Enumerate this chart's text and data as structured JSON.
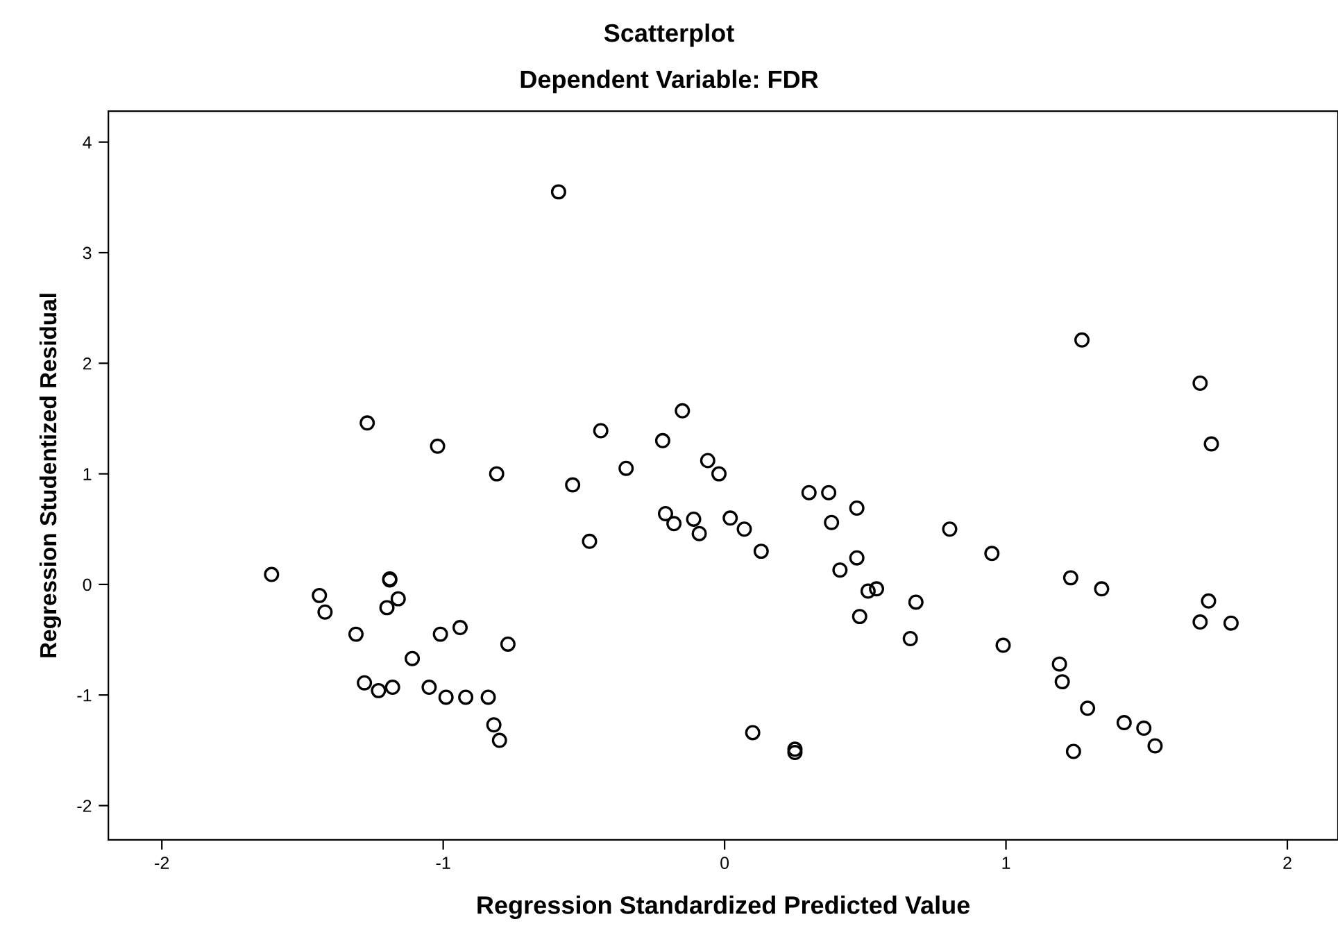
{
  "chart_data": {
    "type": "scatter",
    "title": "Scatterplot",
    "subtitle": "Dependent Variable: FDR",
    "xlabel": "Regression Standardized Predicted Value",
    "ylabel": "Regression Studentized Residual",
    "xlim": [
      -2.19,
      2.18
    ],
    "ylim": [
      -2.31,
      4.28
    ],
    "xticks": [
      -2,
      -1,
      0,
      1,
      2
    ],
    "yticks": [
      -2,
      -1,
      0,
      1,
      2,
      3,
      4
    ],
    "grid": false,
    "marker": "circle",
    "legend": false,
    "series": [
      {
        "color": "#000000",
        "x": [
          -1.61,
          -1.44,
          -1.42,
          -1.31,
          -1.28,
          -1.27,
          -1.23,
          -1.18,
          -1.19,
          -1.19,
          -1.16,
          -1.2,
          -1.11,
          -1.05,
          -1.02,
          -1.01,
          -0.99,
          -0.94,
          -0.92,
          -0.84,
          -0.82,
          -0.81,
          -0.8,
          -0.77,
          -0.59,
          -0.54,
          -0.48,
          -0.44,
          -0.35,
          -0.22,
          -0.21,
          -0.18,
          -0.15,
          -0.11,
          -0.09,
          -0.06,
          -0.02,
          0.02,
          0.13,
          0.07,
          0.1,
          0.25,
          0.25,
          0.3,
          0.37,
          0.38,
          0.41,
          0.47,
          0.47,
          0.48,
          0.51,
          0.54,
          0.66,
          0.68,
          0.8,
          0.95,
          0.99,
          1.19,
          1.2,
          1.23,
          1.27,
          1.29,
          1.24,
          1.34,
          1.42,
          1.49,
          1.53,
          1.69,
          1.69,
          1.72,
          1.73,
          1.8
        ],
        "values": [
          0.09,
          -0.1,
          -0.25,
          -0.45,
          -0.89,
          1.46,
          -0.96,
          -0.93,
          0.05,
          0.04,
          -0.13,
          -0.21,
          -0.67,
          -0.93,
          1.25,
          -0.45,
          -1.02,
          -0.39,
          -1.02,
          -1.02,
          -1.27,
          1.0,
          -1.41,
          -0.54,
          3.55,
          0.9,
          0.39,
          1.39,
          1.05,
          1.3,
          0.64,
          0.55,
          1.57,
          0.59,
          0.46,
          1.12,
          1.0,
          0.6,
          0.3,
          0.5,
          -1.34,
          -1.49,
          -1.52,
          0.83,
          0.83,
          0.56,
          0.13,
          0.69,
          0.24,
          -0.29,
          -0.06,
          -0.04,
          -0.49,
          -0.16,
          0.5,
          0.28,
          -0.55,
          -0.72,
          -0.88,
          0.06,
          2.21,
          -1.12,
          -1.51,
          -0.04,
          -1.25,
          -1.3,
          -1.46,
          -0.34,
          1.82,
          -0.15,
          1.27,
          -0.35
        ]
      }
    ]
  }
}
